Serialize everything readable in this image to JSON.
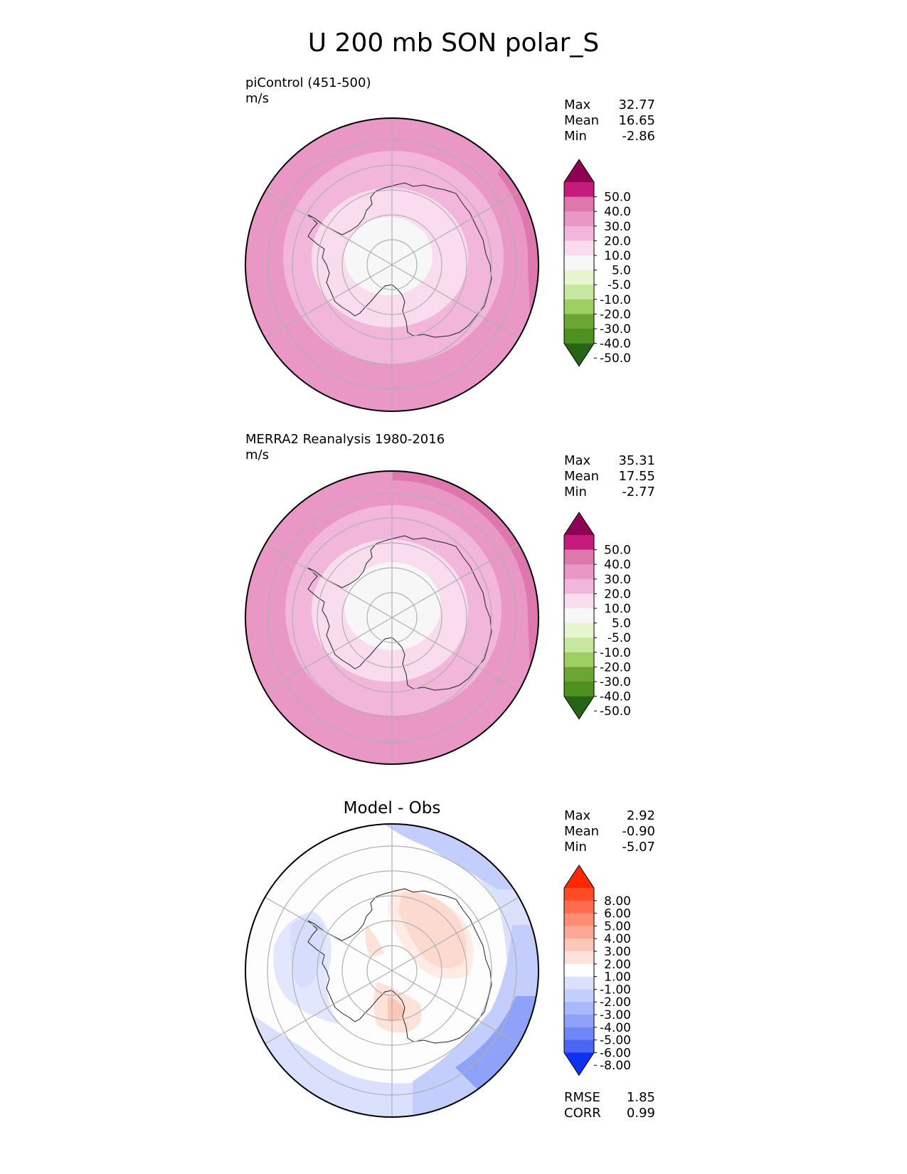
{
  "figure_title": "U 200 mb SON polar_S",
  "panels": [
    {
      "title": "piControl (451-500)",
      "units": "m/s",
      "stats": [
        {
          "label": "Max",
          "value": "32.77"
        },
        {
          "label": "Mean",
          "value": "16.65"
        },
        {
          "label": "Min",
          "value": "-2.86"
        }
      ]
    },
    {
      "title": "MERRA2 Reanalysis 1980-2016",
      "units": "m/s",
      "stats": [
        {
          "label": "Max",
          "value": "35.31"
        },
        {
          "label": "Mean",
          "value": "17.55"
        },
        {
          "label": "Min",
          "value": "-2.77"
        }
      ]
    },
    {
      "title": "Model - Obs",
      "stats": [
        {
          "label": "Max",
          "value": "2.92"
        },
        {
          "label": "Mean",
          "value": "-0.90"
        },
        {
          "label": "Min",
          "value": "-5.07"
        }
      ],
      "metrics": [
        {
          "label": "RMSE",
          "value": "1.85"
        },
        {
          "label": "CORR",
          "value": "0.99"
        }
      ]
    }
  ],
  "colorbars": {
    "field": {
      "ticks": [
        "50.0",
        "40.0",
        "30.0",
        "20.0",
        "10.0",
        "5.0",
        "-5.0",
        "-10.0",
        "-20.0",
        "-30.0",
        "-40.0",
        "-50.0"
      ],
      "colors": [
        "#8e0152",
        "#c51b7d",
        "#de77ae",
        "#e997c4",
        "#f1b6da",
        "#f9dced",
        "#f7f7f7",
        "#e6f5d0",
        "#c7e7a1",
        "#9dcf63",
        "#6aa631",
        "#4d9221",
        "#276419"
      ]
    },
    "diff": {
      "ticks": [
        "8.00",
        "6.00",
        "5.00",
        "4.00",
        "3.00",
        "2.00",
        "1.00",
        "-1.00",
        "-2.00",
        "-3.00",
        "-4.00",
        "-5.00",
        "-6.00",
        "-8.00"
      ],
      "colors": [
        "#ff2800",
        "#ff4a28",
        "#ff6c50",
        "#ff8c74",
        "#fda896",
        "#fcc6b8",
        "#fde2da",
        "#fdfdfd",
        "#dbe1fd",
        "#c3cefc",
        "#a8b8fb",
        "#8ea2fa",
        "#6e86f8",
        "#4a66f6",
        "#1030f4"
      ]
    }
  }
}
